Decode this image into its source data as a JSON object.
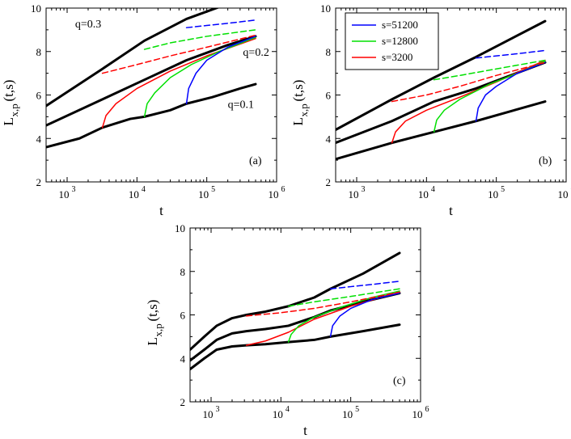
{
  "chart_data": [
    {
      "type": "line",
      "panel_label": "(a)",
      "xlabel": "t",
      "ylabel_main": "L",
      "ylabel_sub": "x,p",
      "ylabel_tail": "(t,s)",
      "xscale": "log",
      "xlim": [
        500,
        1000000
      ],
      "ylim": [
        2,
        10
      ],
      "xtick_values": [
        1000,
        10000,
        100000,
        1000000
      ],
      "xtick_bases": [
        "10",
        "10",
        "10",
        "10"
      ],
      "xtick_exps": [
        "3",
        "4",
        "5",
        "6"
      ],
      "yticks": [
        2,
        4,
        6,
        8,
        10
      ],
      "ytick_labels": [
        "2",
        "4",
        "6",
        "8",
        "10"
      ],
      "annotations": [
        {
          "text": "q=0.3",
          "x": 1300,
          "y": 9.3
        },
        {
          "text": "q=0.2",
          "x": 330000,
          "y": 8.0
        },
        {
          "text": "q=0.1",
          "x": 200000,
          "y": 5.6
        }
      ],
      "legend": null,
      "series": [
        {
          "name": "q=0.3",
          "color": "#000000",
          "style": "solid",
          "width": 3,
          "x": [
            500,
            3200,
            12800,
            51200,
            150000
          ],
          "y": [
            5.5,
            7.2,
            8.5,
            9.5,
            10.05
          ]
        },
        {
          "name": "q=0.2",
          "color": "#000000",
          "style": "solid",
          "width": 3,
          "x": [
            500,
            3200,
            12800,
            51200,
            200000,
            500000
          ],
          "y": [
            4.6,
            5.8,
            6.7,
            7.6,
            8.3,
            8.7
          ]
        },
        {
          "name": "q=0.1",
          "color": "#000000",
          "style": "solid",
          "width": 3,
          "x": [
            500,
            1500,
            3200,
            8000,
            12800,
            30000,
            51200,
            120000,
            300000,
            500000
          ],
          "y": [
            3.6,
            4.0,
            4.5,
            4.9,
            5.0,
            5.3,
            5.6,
            5.9,
            6.3,
            6.5
          ]
        },
        {
          "name": "s=3200 (q=0.1)",
          "color": "#ff0000",
          "style": "solid",
          "width": 1.5,
          "x": [
            3200,
            3600,
            5000,
            10000,
            30000,
            100000,
            500000
          ],
          "y": [
            4.5,
            5.05,
            5.6,
            6.3,
            7.1,
            7.8,
            8.6
          ]
        },
        {
          "name": "s=12800 (q=0.1)",
          "color": "#00e000",
          "style": "solid",
          "width": 1.5,
          "x": [
            12800,
            14000,
            18000,
            30000,
            60000,
            150000,
            500000
          ],
          "y": [
            5.0,
            5.6,
            6.1,
            6.8,
            7.4,
            8.0,
            8.65
          ]
        },
        {
          "name": "s=51200 (q=0.1)",
          "color": "#0000ff",
          "style": "solid",
          "width": 1.5,
          "x": [
            51200,
            55000,
            70000,
            100000,
            200000,
            500000
          ],
          "y": [
            5.6,
            6.3,
            7.0,
            7.6,
            8.2,
            8.7
          ]
        },
        {
          "name": "s=3200 (q=0.2)",
          "color": "#ff0000",
          "style": "dashed",
          "width": 1.5,
          "x": [
            3200,
            10000,
            30000,
            100000,
            500000
          ],
          "y": [
            7.0,
            7.4,
            7.8,
            8.2,
            8.75
          ]
        },
        {
          "name": "s=12800 (q=0.2)",
          "color": "#00e000",
          "style": "dashed",
          "width": 1.5,
          "x": [
            12800,
            30000,
            100000,
            500000
          ],
          "y": [
            8.1,
            8.4,
            8.7,
            9.0
          ]
        },
        {
          "name": "s=51200 (q=0.2)",
          "color": "#0000ff",
          "style": "dashed",
          "width": 1.5,
          "x": [
            51200,
            100000,
            200000,
            500000
          ],
          "y": [
            9.1,
            9.2,
            9.3,
            9.45
          ]
        }
      ]
    },
    {
      "type": "line",
      "panel_label": "(b)",
      "xlabel": "t",
      "ylabel_main": "L",
      "ylabel_sub": "x,p",
      "ylabel_tail": "(t,s)",
      "xscale": "log",
      "xlim": [
        500,
        1000000
      ],
      "ylim": [
        2,
        10
      ],
      "xtick_values": [
        1000,
        10000,
        100000,
        1000000
      ],
      "xtick_bases": [
        "10",
        "10",
        "10",
        "10"
      ],
      "xtick_exps": [
        "3",
        "4",
        "5",
        "6"
      ],
      "yticks": [
        2,
        4,
        6,
        8,
        10
      ],
      "ytick_labels": [
        "2",
        "4",
        "6",
        "8",
        "10"
      ],
      "annotations": [],
      "legend": {
        "placement": "top-left",
        "entries": [
          {
            "label": "s=51200",
            "color": "#0000ff"
          },
          {
            "label": "s=12800",
            "color": "#00e000"
          },
          {
            "label": "s=3200",
            "color": "#ff0000"
          }
        ]
      },
      "series": [
        {
          "name": "upper",
          "color": "#000000",
          "style": "solid",
          "width": 3,
          "x": [
            500,
            3200,
            12800,
            51200,
            500000
          ],
          "y": [
            4.4,
            5.8,
            6.8,
            7.75,
            9.4
          ]
        },
        {
          "name": "middle",
          "color": "#000000",
          "style": "solid",
          "width": 3,
          "x": [
            500,
            3200,
            12800,
            51200,
            500000
          ],
          "y": [
            3.8,
            4.8,
            5.7,
            6.3,
            7.5
          ]
        },
        {
          "name": "lower",
          "color": "#000000",
          "style": "solid",
          "width": 3,
          "x": [
            500,
            3200,
            12800,
            51200,
            500000
          ],
          "y": [
            3.05,
            3.8,
            4.3,
            4.8,
            5.7
          ]
        },
        {
          "name": "s=3200 solid",
          "color": "#ff0000",
          "style": "solid",
          "width": 1.5,
          "x": [
            3200,
            3600,
            5000,
            10000,
            30000,
            100000,
            500000
          ],
          "y": [
            3.8,
            4.3,
            4.8,
            5.3,
            5.9,
            6.6,
            7.6
          ]
        },
        {
          "name": "s=12800 solid",
          "color": "#00e000",
          "style": "solid",
          "width": 1.5,
          "x": [
            12800,
            14000,
            18000,
            30000,
            80000,
            200000,
            500000
          ],
          "y": [
            4.3,
            4.85,
            5.3,
            5.8,
            6.5,
            7.0,
            7.55
          ]
        },
        {
          "name": "s=51200 solid",
          "color": "#0000ff",
          "style": "solid",
          "width": 1.5,
          "x": [
            51200,
            55000,
            70000,
            100000,
            200000,
            500000
          ],
          "y": [
            4.8,
            5.4,
            6.0,
            6.4,
            7.0,
            7.5
          ]
        },
        {
          "name": "s=3200 dashed",
          "color": "#ff0000",
          "style": "dashed",
          "width": 1.5,
          "x": [
            3200,
            10000,
            30000,
            100000,
            500000
          ],
          "y": [
            5.7,
            6.0,
            6.4,
            6.9,
            7.5
          ]
        },
        {
          "name": "s=12800 dashed",
          "color": "#00e000",
          "style": "dashed",
          "width": 1.5,
          "x": [
            12800,
            30000,
            100000,
            500000
          ],
          "y": [
            6.7,
            6.9,
            7.2,
            7.6
          ]
        },
        {
          "name": "s=51200 dashed",
          "color": "#0000ff",
          "style": "dashed",
          "width": 1.5,
          "x": [
            51200,
            100000,
            200000,
            500000
          ],
          "y": [
            7.7,
            7.8,
            7.9,
            8.05
          ]
        }
      ]
    },
    {
      "type": "line",
      "panel_label": "(c)",
      "xlabel": "t",
      "ylabel_main": "L",
      "ylabel_sub": "x,p",
      "ylabel_tail": "(t,s)",
      "xscale": "log",
      "xlim": [
        500,
        1000000
      ],
      "ylim": [
        2,
        10
      ],
      "xtick_values": [
        1000,
        10000,
        100000,
        1000000
      ],
      "xtick_bases": [
        "10",
        "10",
        "10",
        "10"
      ],
      "xtick_exps": [
        "3",
        "4",
        "5",
        "6"
      ],
      "yticks": [
        2,
        4,
        6,
        8,
        10
      ],
      "ytick_labels": [
        "2",
        "4",
        "6",
        "8",
        "10"
      ],
      "annotations": [],
      "legend": null,
      "series": [
        {
          "name": "upper",
          "color": "#000000",
          "style": "solid",
          "width": 3,
          "x": [
            500,
            800,
            1200,
            2000,
            3200,
            6000,
            12800,
            30000,
            51200,
            150000,
            500000
          ],
          "y": [
            4.4,
            5.0,
            5.5,
            5.85,
            6.0,
            6.15,
            6.4,
            6.8,
            7.2,
            7.9,
            8.85
          ]
        },
        {
          "name": "middle",
          "color": "#000000",
          "style": "solid",
          "width": 3,
          "x": [
            500,
            800,
            1200,
            2000,
            3200,
            6000,
            12800,
            30000,
            51200,
            150000,
            500000
          ],
          "y": [
            3.9,
            4.4,
            4.85,
            5.15,
            5.25,
            5.35,
            5.5,
            5.9,
            6.2,
            6.6,
            7.0
          ]
        },
        {
          "name": "lower",
          "color": "#000000",
          "style": "solid",
          "width": 3,
          "x": [
            500,
            800,
            1200,
            2000,
            3200,
            6000,
            12800,
            30000,
            51200,
            150000,
            500000
          ],
          "y": [
            3.5,
            4.0,
            4.4,
            4.55,
            4.6,
            4.65,
            4.75,
            4.85,
            5.0,
            5.25,
            5.55
          ]
        },
        {
          "name": "s=3200 solid",
          "color": "#ff0000",
          "style": "solid",
          "width": 1.5,
          "x": [
            3200,
            6000,
            12800,
            30000,
            100000,
            500000
          ],
          "y": [
            4.6,
            4.8,
            5.2,
            5.8,
            6.4,
            7.05
          ]
        },
        {
          "name": "s=12800 solid",
          "color": "#00e000",
          "style": "solid",
          "width": 1.5,
          "x": [
            12800,
            14000,
            18000,
            30000,
            80000,
            200000,
            500000
          ],
          "y": [
            4.75,
            5.1,
            5.5,
            5.9,
            6.4,
            6.8,
            7.1
          ]
        },
        {
          "name": "s=51200 solid",
          "color": "#0000ff",
          "style": "solid",
          "width": 1.5,
          "x": [
            51200,
            55000,
            70000,
            100000,
            200000,
            500000
          ],
          "y": [
            5.0,
            5.5,
            5.95,
            6.3,
            6.7,
            7.0
          ]
        },
        {
          "name": "s=3200 dashed",
          "color": "#ff0000",
          "style": "dashed",
          "width": 1.5,
          "x": [
            3200,
            10000,
            30000,
            100000,
            500000
          ],
          "y": [
            5.95,
            6.1,
            6.3,
            6.6,
            7.05
          ]
        },
        {
          "name": "s=12800 dashed",
          "color": "#00e000",
          "style": "dashed",
          "width": 1.5,
          "x": [
            12800,
            30000,
            100000,
            500000
          ],
          "y": [
            6.4,
            6.6,
            6.85,
            7.2
          ]
        },
        {
          "name": "s=51200 dashed",
          "color": "#0000ff",
          "style": "dashed",
          "width": 1.5,
          "x": [
            51200,
            100000,
            200000,
            500000
          ],
          "y": [
            7.2,
            7.3,
            7.4,
            7.55
          ]
        }
      ]
    }
  ]
}
